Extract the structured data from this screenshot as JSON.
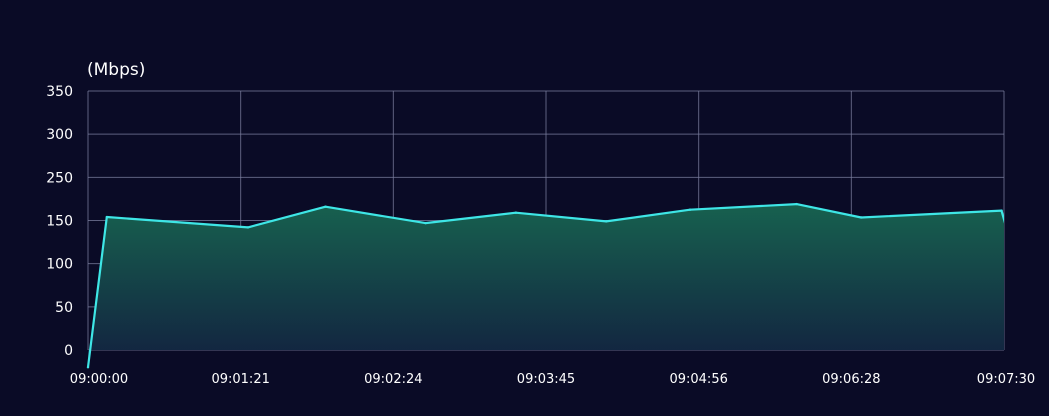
{
  "chart_data": {
    "type": "area",
    "unit_label": "(Mbps)",
    "y_ticks": [
      "350",
      "300",
      "250",
      "150",
      "100",
      "50",
      "0"
    ],
    "x_ticks": [
      "09:00:00",
      "09:01:21",
      "09:02:24",
      "09:03:45",
      "09:04:56",
      "09:06:28",
      "09:07:30"
    ],
    "points": [
      {
        "x": "09:00:00",
        "y": -20
      },
      {
        "x": "09:00:10",
        "y": 158
      },
      {
        "x": "09:01:24",
        "y": 142
      },
      {
        "x": "09:01:56",
        "y": 182
      },
      {
        "x": "09:02:41",
        "y": 147
      },
      {
        "x": "09:03:29",
        "y": 168
      },
      {
        "x": "09:04:13",
        "y": 149
      },
      {
        "x": "09:04:52",
        "y": 175
      },
      {
        "x": "09:05:55",
        "y": 188
      },
      {
        "x": "09:06:32",
        "y": 157
      },
      {
        "x": "09:07:29",
        "y": 173
      },
      {
        "x": "09:07:47",
        "y": -20
      }
    ],
    "colors": {
      "background": "#0a0b26",
      "line": "#3ee6e6",
      "fill_top": "#17614f",
      "fill_bottom": "#12203f",
      "grid": "#7a7e9e"
    },
    "grid": true
  }
}
